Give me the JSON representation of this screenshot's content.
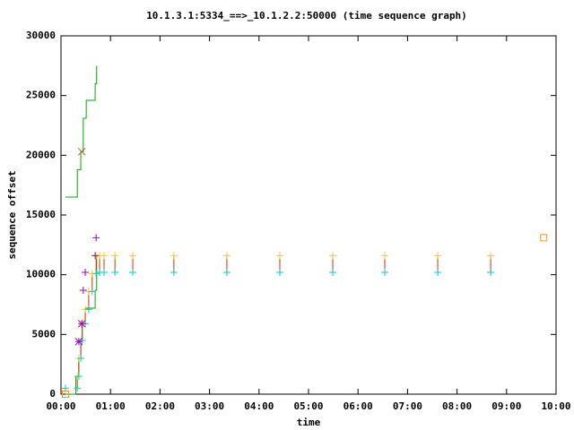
{
  "chart_data": {
    "type": "tsg",
    "title": "10.1.3.1:5334_==>_10.1.2.2:50000 (time sequence graph)",
    "x_label": "time",
    "y_label": "sequence offset",
    "xlim": [
      0,
      10
    ],
    "xticks": [
      {
        "value": 0,
        "label": "00:00"
      },
      {
        "value": 1,
        "label": "01:00"
      },
      {
        "value": 2,
        "label": "02:00"
      },
      {
        "value": 3,
        "label": "03:00"
      },
      {
        "value": 4,
        "label": "04:00"
      },
      {
        "value": 5,
        "label": "05:00"
      },
      {
        "value": 6,
        "label": "06:00"
      },
      {
        "value": 7,
        "label": "07:00"
      },
      {
        "value": 8,
        "label": "08:00"
      },
      {
        "value": 9,
        "label": "09:00"
      },
      {
        "value": 10,
        "label": "10:00"
      }
    ],
    "ylim": [
      0,
      30000
    ],
    "yticks": [
      0,
      5000,
      10000,
      15000,
      20000,
      25000,
      30000
    ],
    "series": [
      {
        "style": "step",
        "color": "#00aa00",
        "x": [
          0.09,
          0.33,
          0.4,
          0.45,
          0.51,
          0.69,
          0.72
        ],
        "values": [
          16500,
          18800,
          20300,
          23100,
          24600,
          26000,
          27500
        ]
      },
      {
        "style": "step",
        "color": "#00aa00",
        "x": [
          0.09,
          0.3,
          0.36,
          0.4,
          0.43,
          0.49,
          0.69,
          0.72
        ],
        "values": [
          0,
          1500,
          3000,
          4500,
          5900,
          7200,
          8700,
          11600
        ]
      },
      {
        "style": "range",
        "color": "#cc3300",
        "top_color": "#ffcc00",
        "low_color": "#00cccc",
        "x": [
          0.33,
          0.36,
          0.4,
          0.43,
          0.49,
          0.56,
          0.63,
          0.71,
          0.78,
          0.87,
          1.09,
          1.45,
          2.28,
          3.35,
          4.42,
          5.49,
          6.54,
          7.61,
          8.68
        ],
        "values": [
          1500,
          3000,
          4500,
          6000,
          7100,
          8600,
          10100,
          11600,
          11600,
          11600,
          11600,
          11600,
          11600,
          11600,
          11600,
          11600,
          11600,
          11600,
          11600
        ],
        "low": [
          500,
          1500,
          3000,
          4500,
          5900,
          7100,
          8600,
          10100,
          10200,
          10200,
          10200,
          10200,
          10200,
          10200,
          10200,
          10200,
          10200,
          10200,
          10200
        ]
      },
      {
        "style": "points",
        "marker": "plus",
        "color": "#00cccc",
        "x": [
          0.09
        ],
        "values": [
          500
        ]
      },
      {
        "style": "points",
        "marker": "plus",
        "color": "#9900cc",
        "x": [
          0.36,
          0.42,
          0.49,
          0.45,
          0.71,
          0.69
        ],
        "values": [
          4400,
          5900,
          10200,
          8700,
          13100,
          11600
        ]
      },
      {
        "style": "points",
        "marker": "cross",
        "color": "#9900cc",
        "x": [
          0.36,
          0.42
        ],
        "values": [
          4400,
          5900
        ]
      },
      {
        "style": "points",
        "marker": "cross",
        "color": "#996633",
        "x": [
          0.42
        ],
        "values": [
          20300
        ]
      },
      {
        "style": "points",
        "marker": "square",
        "color": "#ff9900",
        "x": [
          0.09,
          9.75
        ],
        "values": [
          0,
          13100
        ]
      }
    ]
  }
}
